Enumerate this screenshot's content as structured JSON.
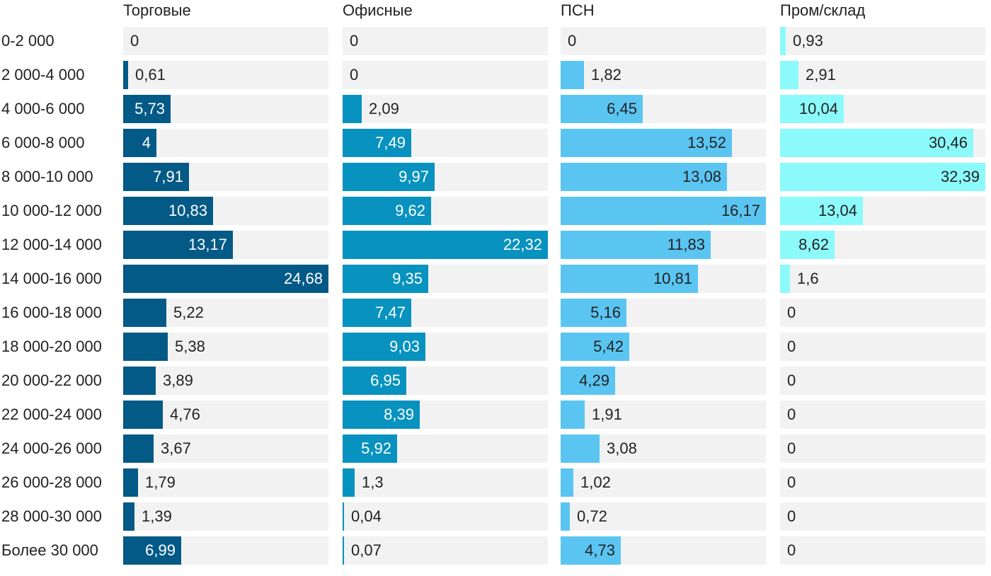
{
  "chart_data": {
    "type": "bar",
    "orientation": "horizontal",
    "layout": "small-multiples",
    "categories": [
      "0-2 000",
      "2 000-4 000",
      "4 000-6 000",
      "6 000-8 000",
      "8 000-10 000",
      "10 000-12 000",
      "12 000-14 000",
      "14 000-16 000",
      "16 000-18 000",
      "18 000-20 000",
      "20 000-22 000",
      "22 000-24 000",
      "24 000-26 000",
      "26 000-28 000",
      "28 000-30 000",
      "Более 30 000"
    ],
    "series": [
      {
        "name": "Торговые",
        "color": "#045a86",
        "label_color_inside": "#ffffff",
        "values": [
          0,
          0.61,
          5.73,
          4,
          7.91,
          10.83,
          13.17,
          24.68,
          5.22,
          5.38,
          3.89,
          4.76,
          3.67,
          1.79,
          1.39,
          6.99
        ],
        "labels": [
          "0",
          "0,61",
          "5,73",
          "4",
          "7,91",
          "10,83",
          "13,17",
          "24,68",
          "5,22",
          "5,38",
          "3,89",
          "4,76",
          "3,67",
          "1,79",
          "1,39",
          "6,99"
        ],
        "label_inside": [
          false,
          false,
          true,
          true,
          true,
          true,
          true,
          true,
          false,
          false,
          false,
          false,
          false,
          false,
          false,
          true
        ]
      },
      {
        "name": "Офисные",
        "color": "#0892bf",
        "label_color_inside": "#ffffff",
        "values": [
          0,
          0,
          2.09,
          7.49,
          9.97,
          9.62,
          22.32,
          9.35,
          7.47,
          9.03,
          6.95,
          8.39,
          5.92,
          1.3,
          0.04,
          0.07
        ],
        "labels": [
          "0",
          "0",
          "2,09",
          "7,49",
          "9,97",
          "9,62",
          "22,32",
          "9,35",
          "7,47",
          "9,03",
          "6,95",
          "8,39",
          "5,92",
          "1,3",
          "0,04",
          "0,07"
        ],
        "label_inside": [
          false,
          false,
          false,
          true,
          true,
          true,
          true,
          true,
          true,
          true,
          true,
          true,
          true,
          false,
          false,
          false
        ]
      },
      {
        "name": "ПСН",
        "color": "#5bc5f2",
        "label_color_inside": "#222222",
        "values": [
          0,
          1.82,
          6.45,
          13.52,
          13.08,
          16.17,
          11.83,
          10.81,
          5.16,
          5.42,
          4.29,
          1.91,
          3.08,
          1.02,
          0.72,
          4.73
        ],
        "labels": [
          "0",
          "1,82",
          "6,45",
          "13,52",
          "13,08",
          "16,17",
          "11,83",
          "10,81",
          "5,16",
          "5,42",
          "4,29",
          "1,91",
          "3,08",
          "1,02",
          "0,72",
          "4,73"
        ],
        "label_inside": [
          false,
          false,
          true,
          true,
          true,
          true,
          true,
          true,
          true,
          true,
          true,
          false,
          false,
          false,
          false,
          true
        ]
      },
      {
        "name": "Пром/склад",
        "color": "#8cfafb",
        "label_color_inside": "#222222",
        "values": [
          0.93,
          2.91,
          10.04,
          30.46,
          32.39,
          13.04,
          8.62,
          1.6,
          0,
          0,
          0,
          0,
          0,
          0,
          0,
          0
        ],
        "labels": [
          "0,93",
          "2,91",
          "10,04",
          "30,46",
          "32,39",
          "13,04",
          "8,62",
          "1,6",
          "0",
          "0",
          "0",
          "0",
          "0",
          "0",
          "0",
          "0"
        ],
        "label_inside": [
          false,
          false,
          true,
          true,
          true,
          true,
          true,
          false,
          false,
          false,
          false,
          false,
          false,
          false,
          false,
          false
        ]
      }
    ],
    "track_color": "#f2f2f2",
    "grid": false,
    "legend": "none"
  }
}
